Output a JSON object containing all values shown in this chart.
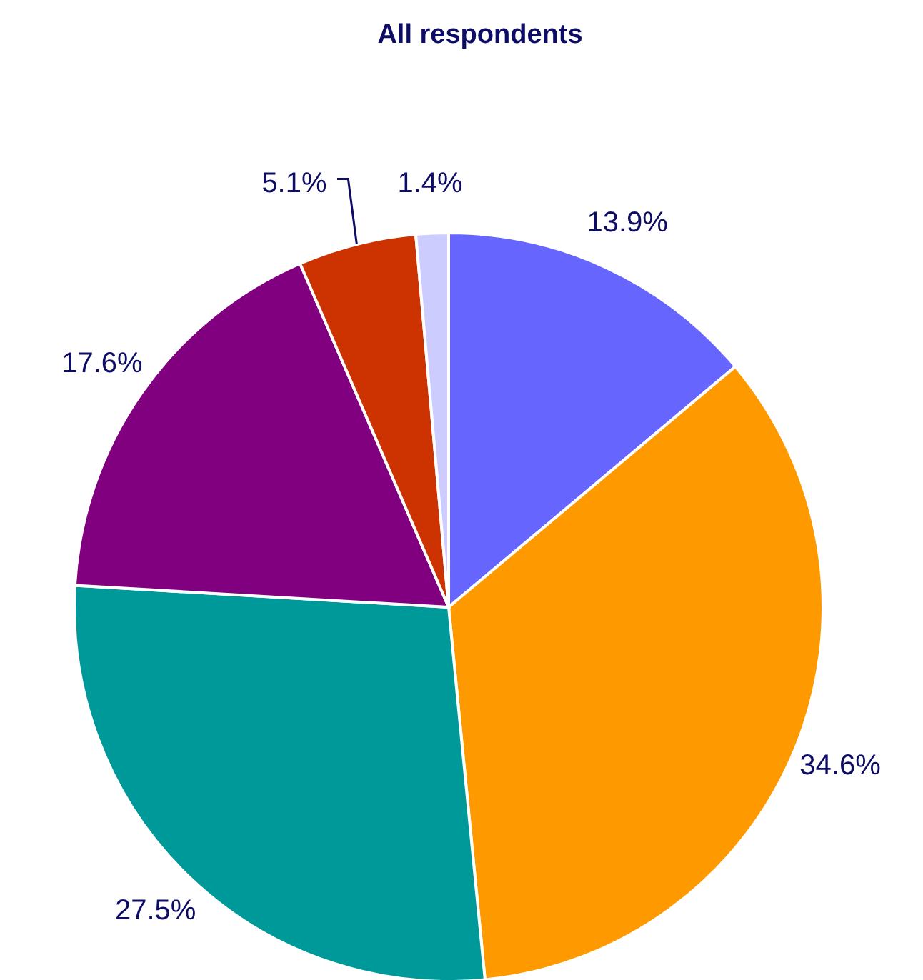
{
  "chart_data": {
    "type": "pie",
    "title": "All respondents",
    "categories": [
      null,
      null,
      null,
      null,
      null,
      null
    ],
    "values": [
      13.9,
      34.6,
      27.5,
      17.6,
      5.1,
      1.4
    ],
    "value_labels": [
      "13.9%",
      "34.6%",
      "27.5%",
      "17.6%",
      "5.1%",
      "1.4%"
    ],
    "colors": [
      "#6666ff",
      "#ff9900",
      "#009999",
      "#800080",
      "#cc3300",
      "#ccccff"
    ]
  }
}
